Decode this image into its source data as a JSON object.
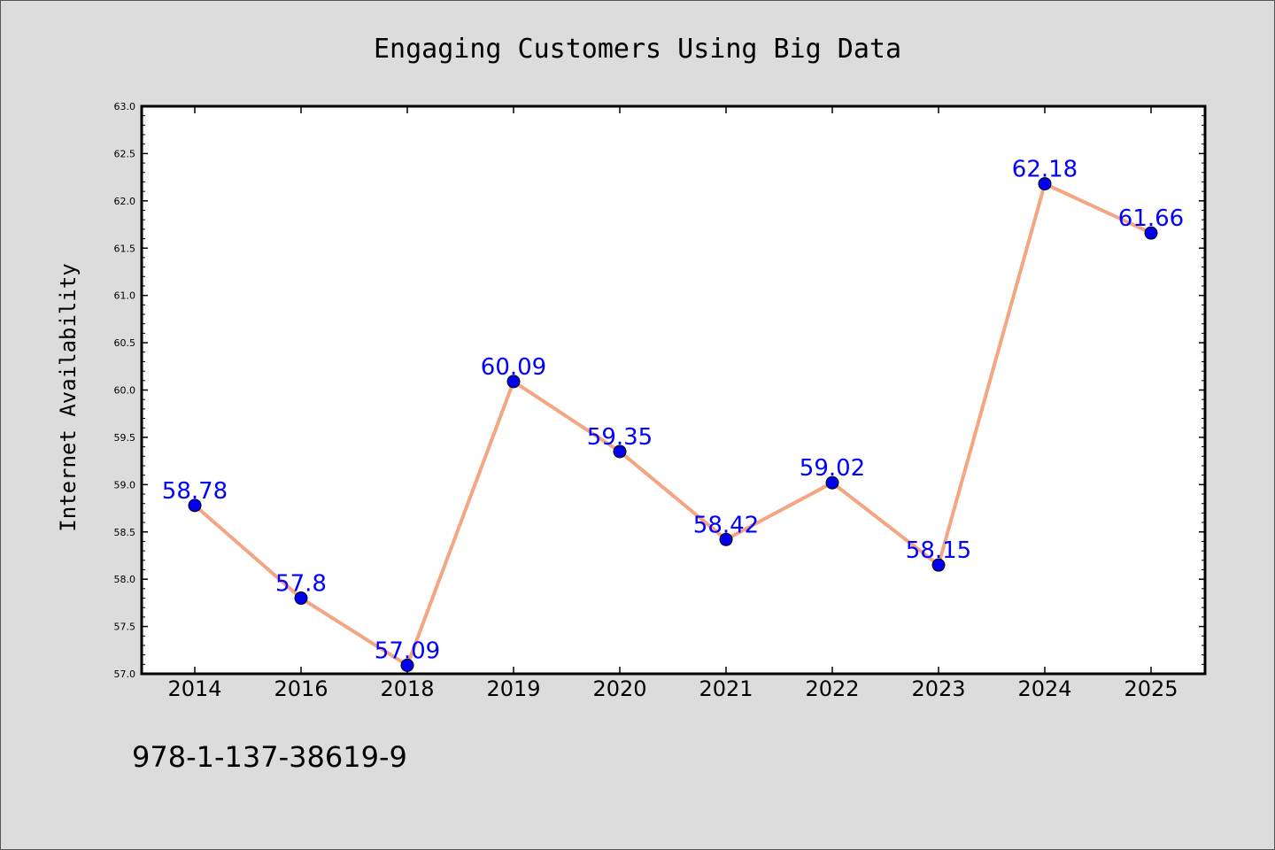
{
  "chart_data": {
    "type": "line",
    "title": "Engaging Customers Using Big Data",
    "xlabel": "",
    "ylabel": "Internet Availability",
    "categories": [
      "2014",
      "2016",
      "2018",
      "2019",
      "2020",
      "2021",
      "2022",
      "2023",
      "2024",
      "2025"
    ],
    "series": [
      {
        "values": [
          58.78,
          57.8,
          57.09,
          60.09,
          59.35,
          58.42,
          59.02,
          58.15,
          62.18,
          61.66
        ],
        "data_labels": [
          "58.78",
          "57.8",
          "57.09",
          "60.09",
          "59.35",
          "58.42",
          "59.02",
          "58.15",
          "62.18",
          "61.66"
        ]
      }
    ],
    "ylim": [
      57.0,
      63.0
    ],
    "yticks": [
      "57.0",
      "57.5",
      "58.0",
      "58.5",
      "59.0",
      "59.5",
      "60.0",
      "60.5",
      "61.0",
      "61.5",
      "62.0",
      "62.5",
      "63.0"
    ],
    "grid": false,
    "colors": {
      "line": "#f4a582",
      "marker": "#0000ee",
      "marker_edge": "#000000",
      "data_label": "#0000ff",
      "background": "#dcdcdc",
      "plot_background": "#ffffff"
    }
  },
  "footer": {
    "isbn": "978-1-137-38619-9"
  }
}
